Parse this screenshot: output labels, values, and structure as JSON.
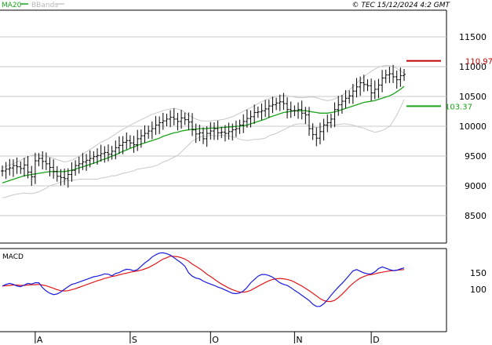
{
  "header": {
    "ma_label": "MA20",
    "bands_label": "BBands",
    "copyright": "© TEC 15/12/2024 4:2 GMT"
  },
  "colors": {
    "price": "#000000",
    "ma20": "#1aa51a",
    "bands": "#c8c8c8",
    "resistance": "#c00000",
    "support": "#1aa51a",
    "macd": "#1a1ae0",
    "signal": "#e01a1a",
    "grid": "#c8c8c8"
  },
  "levels": {
    "resistance": {
      "value": 110.97,
      "label": "110.97"
    },
    "support": {
      "value": 103.37,
      "label": "103.37"
    }
  },
  "macd": {
    "label": "MACD",
    "ticks": [
      {
        "v": 150,
        "label": "150"
      },
      {
        "v": 100,
        "label": "100"
      }
    ]
  },
  "chart_data": {
    "type": "candlestick",
    "title": "",
    "y_ticks": [
      {
        "v": 115,
        "label": "11500"
      },
      {
        "v": 110,
        "label": "11000"
      },
      {
        "v": 105,
        "label": "10500"
      },
      {
        "v": 100,
        "label": "10000"
      },
      {
        "v": 95,
        "label": "9500"
      },
      {
        "v": 90,
        "label": "9000"
      },
      {
        "v": 85,
        "label": "8500"
      }
    ],
    "ylim": [
      80,
      118
    ],
    "x_ticks": [
      {
        "i": 9,
        "label": "A"
      },
      {
        "i": 35,
        "label": "S"
      },
      {
        "i": 57,
        "label": "O"
      },
      {
        "i": 80,
        "label": "N"
      },
      {
        "i": 101,
        "label": "D"
      }
    ],
    "n_bars": 111,
    "close": [
      92.5,
      92.8,
      93.0,
      93.4,
      93.2,
      92.9,
      93.5,
      92.3,
      91.5,
      94.2,
      94.6,
      94.1,
      93.7,
      93.1,
      92.4,
      91.6,
      91.4,
      91.2,
      91.9,
      92.6,
      93.4,
      93.7,
      94.0,
      94.3,
      94.6,
      94.9,
      95.1,
      95.4,
      95.6,
      95.3,
      95.8,
      96.4,
      96.8,
      97.3,
      97.6,
      97.2,
      96.9,
      97.9,
      98.4,
      98.8,
      99.2,
      99.6,
      100.2,
      100.6,
      100.9,
      101.2,
      101.5,
      101.2,
      100.8,
      101.4,
      101.1,
      100.7,
      99.4,
      98.7,
      98.9,
      97.9,
      98.8,
      99.2,
      99.6,
      98.9,
      99.0,
      98.8,
      99.1,
      99.4,
      99.6,
      100.2,
      100.8,
      101.3,
      101.6,
      102.3,
      102.4,
      102.6,
      102.9,
      103.4,
      103.6,
      103.9,
      104.1,
      103.8,
      102.8,
      102.6,
      102.6,
      102.8,
      102.2,
      101.9,
      99.6,
      98.6,
      98.0,
      99.1,
      100.2,
      100.6,
      101.2,
      102.8,
      103.6,
      104.2,
      104.7,
      105.1,
      105.9,
      106.6,
      107.3,
      107.0,
      106.8,
      105.6,
      106.2,
      106.9,
      108.1,
      108.6,
      108.8,
      108.3,
      107.8,
      108.5,
      108.7
    ],
    "ma20": [
      90.5,
      90.7,
      90.9,
      91.1,
      91.3,
      91.5,
      91.7,
      91.8,
      91.9,
      92.0,
      92.1,
      92.2,
      92.3,
      92.4,
      92.4,
      92.4,
      92.4,
      92.4,
      92.5,
      92.6,
      92.8,
      93.0,
      93.2,
      93.4,
      93.6,
      93.8,
      94.0,
      94.3,
      94.5,
      94.7,
      95.0,
      95.2,
      95.5,
      95.8,
      96.0,
      96.3,
      96.5,
      96.8,
      97.0,
      97.2,
      97.4,
      97.6,
      97.8,
      98.0,
      98.3,
      98.5,
      98.7,
      98.9,
      99.0,
      99.2,
      99.3,
      99.4,
      99.5,
      99.5,
      99.6,
      99.6,
      99.6,
      99.7,
      99.7,
      99.7,
      99.8,
      99.8,
      99.9,
      99.9,
      100.0,
      100.0,
      100.1,
      100.2,
      100.4,
      100.6,
      100.8,
      101.0,
      101.2,
      101.5,
      101.7,
      101.9,
      102.1,
      102.3,
      102.4,
      102.5,
      102.6,
      102.6,
      102.6,
      102.6,
      102.5,
      102.4,
      102.3,
      102.2,
      102.2,
      102.2,
      102.3,
      102.4,
      102.6,
      102.8,
      103.0,
      103.2,
      103.4,
      103.6,
      103.8,
      104.0,
      104.1,
      104.2,
      104.3,
      104.5,
      104.7,
      104.9,
      105.1,
      105.4,
      105.8,
      106.2,
      106.7
    ],
    "bb_upper": [
      93.0,
      93.3,
      93.5,
      93.7,
      94.0,
      94.3,
      94.6,
      94.9,
      95.1,
      95.2,
      95.2,
      95.1,
      95.0,
      94.8,
      94.6,
      94.4,
      94.2,
      94.0,
      94.1,
      94.3,
      94.6,
      94.9,
      95.3,
      95.7,
      96.1,
      96.5,
      96.9,
      97.3,
      97.6,
      97.9,
      98.3,
      98.7,
      99.1,
      99.5,
      99.8,
      100.2,
      100.5,
      100.8,
      101.1,
      101.4,
      101.7,
      102.0,
      102.2,
      102.4,
      102.6,
      102.8,
      102.9,
      103.0,
      102.9,
      102.7,
      102.3,
      101.9,
      101.5,
      101.2,
      101.0,
      100.9,
      100.9,
      100.9,
      101.0,
      101.0,
      101.1,
      101.2,
      101.4,
      101.6,
      101.9,
      102.2,
      102.5,
      102.8,
      103.1,
      103.4,
      103.8,
      104.1,
      104.4,
      104.6,
      104.8,
      105.0,
      105.1,
      105.2,
      105.1,
      105.0,
      104.9,
      104.8,
      104.8,
      104.8,
      104.9,
      104.9,
      104.8,
      104.6,
      104.4,
      104.3,
      104.4,
      104.6,
      104.9,
      105.2,
      105.6,
      106.1,
      106.6,
      107.2,
      107.8,
      108.3,
      108.8,
      109.2,
      109.6,
      109.9,
      110.1,
      110.2,
      110.2,
      110.0,
      109.7,
      109.3,
      108.9
    ],
    "bb_lower": [
      88.0,
      88.1,
      88.3,
      88.5,
      88.6,
      88.7,
      88.8,
      88.7,
      88.7,
      88.8,
      89.0,
      89.3,
      89.6,
      90.0,
      90.2,
      90.4,
      90.6,
      90.8,
      90.9,
      90.9,
      91.0,
      91.1,
      91.1,
      91.1,
      91.1,
      91.1,
      91.1,
      91.3,
      91.4,
      91.5,
      91.7,
      91.7,
      91.9,
      92.1,
      92.2,
      92.4,
      92.5,
      92.8,
      92.9,
      93.0,
      93.1,
      93.2,
      93.4,
      93.6,
      94.0,
      94.2,
      94.5,
      94.8,
      95.1,
      95.7,
      96.3,
      96.9,
      97.5,
      97.8,
      98.2,
      98.3,
      98.3,
      98.5,
      98.4,
      98.4,
      98.5,
      98.4,
      98.4,
      98.2,
      98.1,
      97.8,
      97.7,
      97.6,
      97.7,
      97.8,
      97.8,
      97.9,
      98.0,
      98.4,
      98.6,
      98.8,
      99.1,
      99.4,
      99.7,
      100.0,
      100.3,
      100.4,
      100.4,
      100.4,
      100.1,
      99.9,
      99.8,
      99.8,
      100.0,
      100.1,
      100.2,
      100.2,
      100.3,
      100.4,
      100.4,
      100.3,
      100.2,
      100.0,
      99.8,
      99.7,
      99.4,
      99.2,
      99.0,
      99.1,
      99.3,
      99.6,
      100.0,
      100.8,
      101.9,
      103.1,
      104.5
    ],
    "macd": [
      110,
      115,
      118,
      115,
      110,
      108,
      113,
      118,
      116,
      120,
      120,
      105,
      95,
      88,
      84,
      86,
      92,
      100,
      108,
      115,
      118,
      122,
      126,
      130,
      134,
      138,
      140,
      143,
      147,
      146,
      141,
      148,
      151,
      157,
      161,
      160,
      156,
      160,
      170,
      180,
      188,
      198,
      205,
      210,
      211,
      208,
      204,
      196,
      188,
      180,
      170,
      150,
      140,
      134,
      132,
      125,
      120,
      116,
      112,
      107,
      103,
      98,
      93,
      88,
      87,
      89,
      95,
      106,
      120,
      130,
      140,
      145,
      145,
      142,
      137,
      128,
      120,
      115,
      112,
      105,
      97,
      90,
      82,
      74,
      66,
      55,
      48,
      48,
      56,
      68,
      82,
      95,
      107,
      118,
      130,
      143,
      156,
      160,
      155,
      150,
      147,
      147,
      153,
      163,
      168,
      164,
      160,
      157,
      158,
      162,
      165
    ],
    "signal": [
      110,
      111,
      112,
      113,
      113,
      112,
      112,
      113,
      114,
      114,
      115,
      113,
      111,
      107,
      103,
      99,
      96,
      95,
      96,
      99,
      102,
      106,
      110,
      114,
      118,
      122,
      126,
      129,
      133,
      136,
      139,
      141,
      144,
      147,
      149,
      152,
      154,
      156,
      158,
      162,
      166,
      172,
      178,
      185,
      192,
      196,
      201,
      200,
      199,
      196,
      192,
      185,
      177,
      170,
      163,
      155,
      146,
      139,
      131,
      123,
      116,
      110,
      104,
      99,
      95,
      92,
      91,
      93,
      97,
      103,
      109,
      115,
      121,
      126,
      130,
      132,
      133,
      132,
      130,
      127,
      122,
      116,
      110,
      103,
      96,
      88,
      80,
      72,
      66,
      63,
      63,
      67,
      75,
      85,
      96,
      108,
      118,
      127,
      134,
      139,
      143,
      145,
      147,
      150,
      152,
      154,
      156,
      157,
      158,
      159,
      160
    ]
  }
}
